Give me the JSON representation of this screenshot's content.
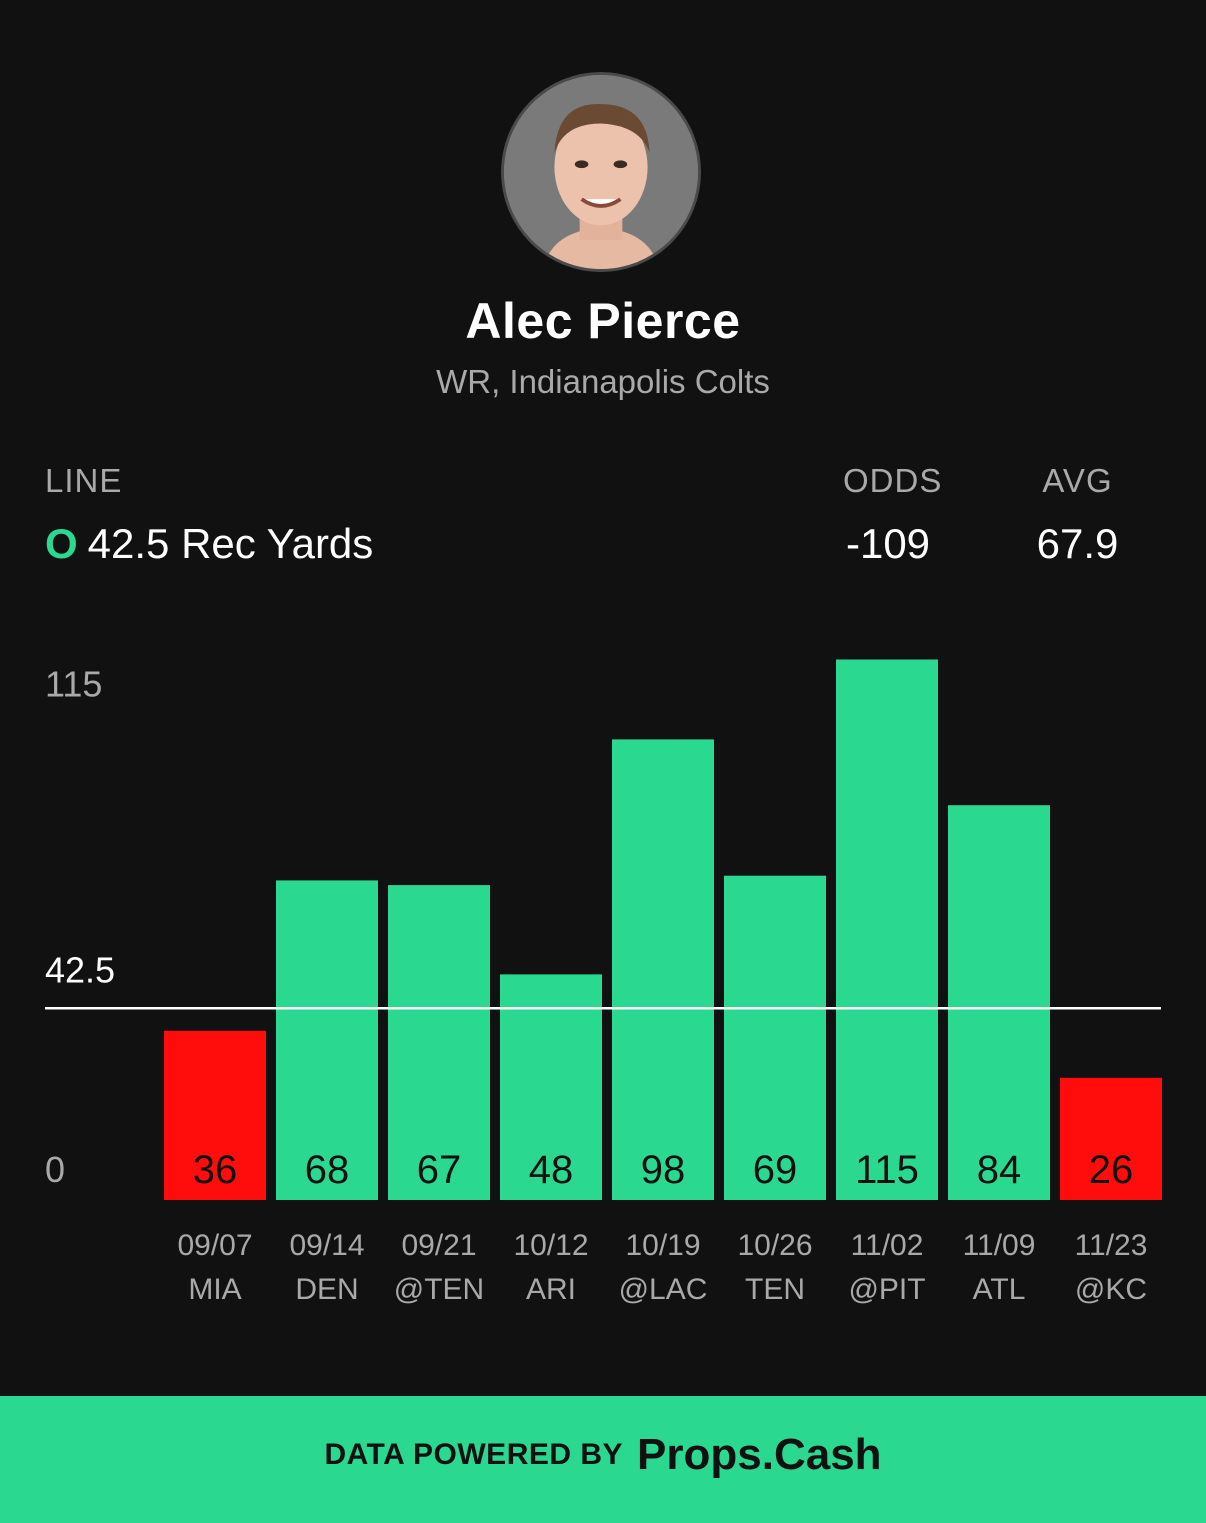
{
  "player": {
    "name": "Alec Pierce",
    "subtitle": "WR, Indianapolis Colts"
  },
  "stats": {
    "line_label": "LINE",
    "line_side": "O",
    "line_value": "42.5 Rec Yards",
    "odds_label": "ODDS",
    "odds_value": "-109",
    "avg_label": "AVG",
    "avg_value": "67.9"
  },
  "chart_data": {
    "type": "bar",
    "categories": [
      "09/07",
      "09/14",
      "09/21",
      "10/12",
      "10/19",
      "10/26",
      "11/02",
      "11/09",
      "11/23"
    ],
    "opponents": [
      "MIA",
      "DEN",
      "@TEN",
      "ARI",
      "@LAC",
      "TEN",
      "@PIT",
      "ATL",
      "@KC"
    ],
    "values": [
      36,
      68,
      67,
      48,
      98,
      69,
      115,
      84,
      26
    ],
    "threshold": 42.5,
    "y_ticks": [
      "115",
      "42.5",
      "0"
    ],
    "ylim": [
      0,
      117
    ],
    "colors": {
      "over": "#2ad98f",
      "under": "#ff0d0d",
      "threshold_line": "#ffffff"
    }
  },
  "footer": {
    "prefix": "DATA POWERED BY",
    "brand": "Props.Cash"
  },
  "colors": {
    "background": "#111111",
    "accent": "#2ad98f",
    "under": "#ff0d0d",
    "muted_text": "#a9a9a9"
  }
}
